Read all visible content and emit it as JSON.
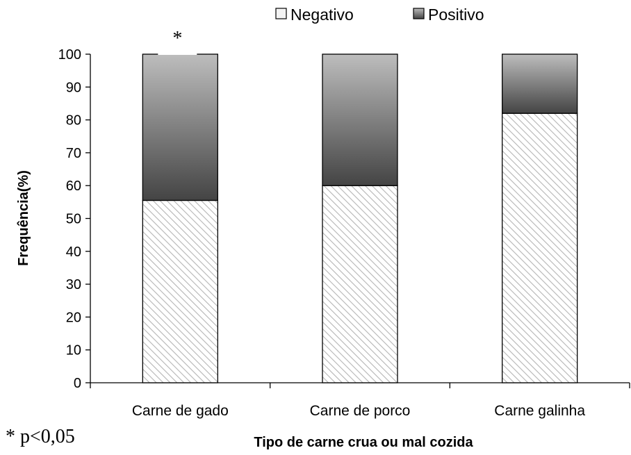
{
  "chart_data": {
    "type": "bar",
    "stacked": true,
    "categories": [
      "Carne de gado",
      "Carne de porco",
      "Carne galinha"
    ],
    "series": [
      {
        "name": "Negativo",
        "values": [
          55.5,
          60,
          82
        ],
        "color": "#f2f2f2",
        "pattern": "diagonal-hatch"
      },
      {
        "name": "Positivo",
        "values": [
          44.5,
          40,
          18
        ],
        "color": "#555555",
        "pattern": "gradient-gray"
      }
    ],
    "xlabel": "Tipo de carne crua ou mal cozida",
    "ylabel": "Frequência(%)",
    "ylim": [
      0,
      100
    ],
    "yticks": [
      0,
      10,
      20,
      30,
      40,
      50,
      60,
      70,
      80,
      90,
      100
    ],
    "grid": false,
    "legend_position": "top",
    "annotations": [
      {
        "text": "*",
        "category": "Carne de gado"
      }
    ],
    "footnote": "* p<0,05"
  }
}
